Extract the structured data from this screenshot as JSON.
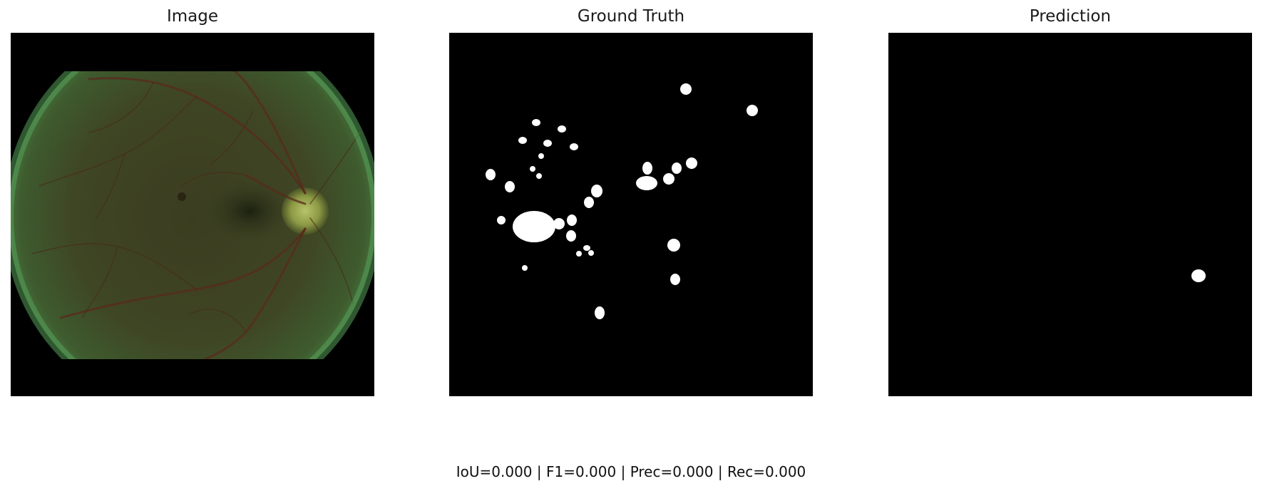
{
  "panels": [
    {
      "title": "Image"
    },
    {
      "title": "Ground Truth"
    },
    {
      "title": "Prediction"
    }
  ],
  "metrics": {
    "iou": "IoU=0.000",
    "f1": "F1=0.000",
    "prec": "Prec=0.000",
    "rec": "Rec=0.000",
    "separator": " | "
  },
  "colors": {
    "background": "#000000",
    "mask": "#ffffff",
    "fundus": "#3f4524",
    "fundus_rim": "#4f8a4a"
  }
}
